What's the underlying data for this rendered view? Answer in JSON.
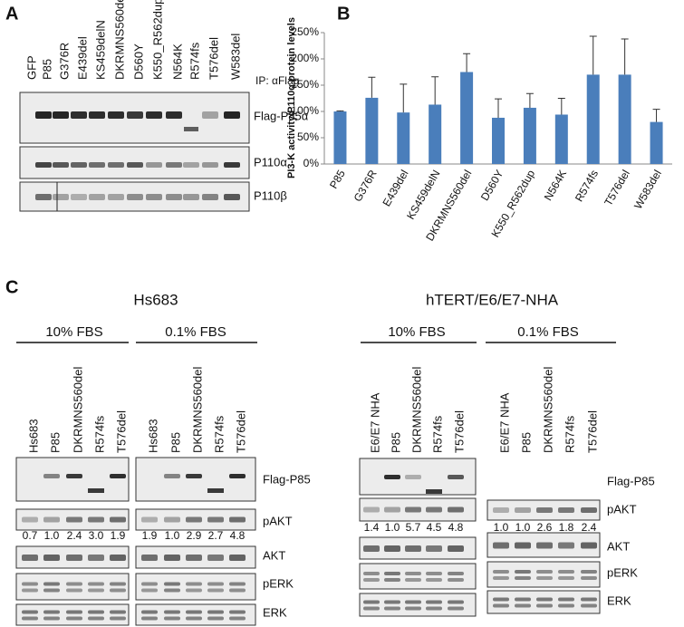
{
  "panel_a": {
    "letter": "A",
    "ip_label": "IP: αFlag",
    "lanes": [
      "GFP",
      "P85",
      "G376R",
      "E439del",
      "KS459delN",
      "DKRMNS560del",
      "D560Y",
      "K550_R562dup",
      "N564K",
      "R574fs",
      "T576del",
      "W583del"
    ],
    "blots": [
      "Flag-P85α",
      "P110α",
      "P110β"
    ]
  },
  "chart_data": {
    "type": "bar",
    "panel_letter": "B",
    "ylabel": "PI3-K activity/P110α protein levels",
    "categories": [
      "P85",
      "G376R",
      "E439del",
      "KS459delN",
      "DKRMNS560del",
      "D560Y",
      "K550_R562dup",
      "N564K",
      "R574fs",
      "T576del",
      "W583del"
    ],
    "values": [
      100,
      126,
      98,
      113,
      175,
      88,
      107,
      94,
      170,
      170,
      80
    ],
    "errors": [
      1,
      39,
      54,
      53,
      35,
      36,
      27,
      31,
      73,
      68,
      24
    ],
    "color": "#4a7ebb",
    "ylim": [
      0,
      250
    ],
    "yticks": [
      {
        "value": 0,
        "label": "0%"
      },
      {
        "value": 50,
        "label": "50%"
      },
      {
        "value": 100,
        "label": "100%"
      },
      {
        "value": 150,
        "label": "150%"
      },
      {
        "value": 200,
        "label": "200%"
      },
      {
        "value": 250,
        "label": "250%"
      }
    ]
  },
  "panel_c": {
    "letter": "C",
    "cell_lines": [
      {
        "name": "Hs683",
        "blots": [
          "Flag-P85",
          "pAKT",
          "AKT",
          "pERK",
          "ERK"
        ],
        "groups": [
          {
            "condition": "10% FBS",
            "lanes": [
              "Hs683",
              "P85",
              "DKRMNS560del",
              "R574fs",
              "T576del"
            ],
            "pakt_quant": [
              "0.7",
              "1.0",
              "2.4",
              "3.0",
              "1.9"
            ]
          },
          {
            "condition": "0.1% FBS",
            "lanes": [
              "Hs683",
              "P85",
              "DKRMNS560del",
              "R574fs",
              "T576del"
            ],
            "pakt_quant": [
              "1.9",
              "1.0",
              "2.9",
              "2.7",
              "4.8"
            ]
          }
        ]
      },
      {
        "name": "hTERT/E6/E7-NHA",
        "blots": [
          "Flag-P85",
          "pAKT",
          "AKT",
          "pERK",
          "ERK"
        ],
        "groups": [
          {
            "condition": "10% FBS",
            "lanes": [
              "E6/E7 NHA",
              "P85",
              "DKRMNS560del",
              "R574fs",
              "T576del"
            ],
            "pakt_quant": [
              "1.4",
              "1.0",
              "5.7",
              "4.5",
              "4.8"
            ]
          },
          {
            "condition": "0.1% FBS",
            "lanes": [
              "E6/E7 NHA",
              "P85",
              "DKRMNS560del",
              "R574fs",
              "T576del"
            ],
            "pakt_quant": [
              "1.0",
              "1.0",
              "2.6",
              "1.8",
              "2.4"
            ]
          }
        ]
      }
    ]
  }
}
